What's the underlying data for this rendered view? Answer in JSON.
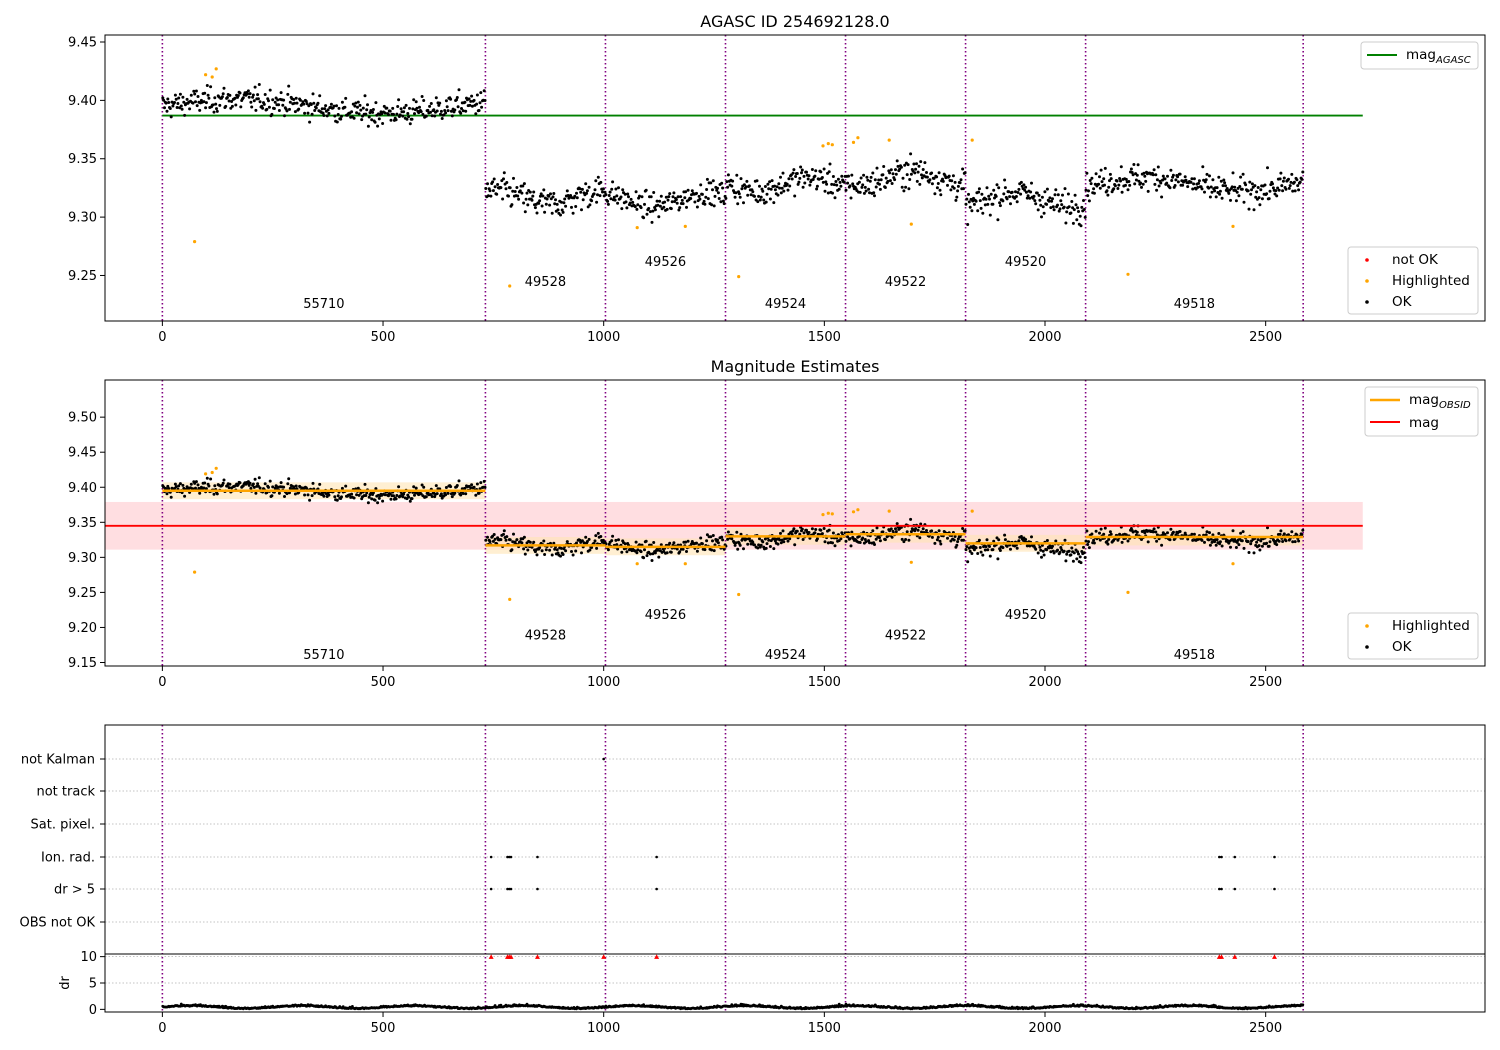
{
  "figure": {
    "background": "#ffffff",
    "xlim": [
      -130,
      2997
    ],
    "x_ticks": [
      0,
      500,
      1000,
      1500,
      2000,
      2500
    ]
  },
  "segments": {
    "boundaries": [
      0,
      732,
      1004,
      1276,
      1548,
      1820,
      2092,
      2585
    ],
    "obsids": [
      "55710",
      "49528",
      "49526",
      "49524",
      "49522",
      "49520",
      "49518"
    ],
    "top_label_y": [
      9.222,
      9.241,
      9.258,
      9.222,
      9.241,
      9.258,
      9.222
    ],
    "mid_label_y": [
      9.155,
      9.183,
      9.212,
      9.155,
      9.183,
      9.212,
      9.155
    ],
    "boundary_color": "#800080"
  },
  "colors": {
    "ok": "#000000",
    "highlighted": "#ffa500",
    "not_ok": "#ff0000",
    "mag_agasc": "#008000",
    "mag": "#ff0000",
    "mag_band": "#ffd6da",
    "mag_obsid": "#ffa500",
    "obsid_band": "#ffe5b4"
  },
  "chart_data": [
    {
      "type": "scatter",
      "title": "AGASC ID 254692128.0",
      "xlim": [
        -130,
        2997
      ],
      "ylim": [
        9.211,
        9.456
      ],
      "y_ticks": [
        9.25,
        9.3,
        9.35,
        9.4,
        9.45
      ],
      "mag_agasc": 9.387,
      "mag_agasc_x_range": [
        0,
        2720
      ],
      "segment_means": [
        9.395,
        9.317,
        9.315,
        9.328,
        9.333,
        9.315,
        9.328
      ],
      "segment_scatter": [
        0.009,
        0.011,
        0.009,
        0.01,
        0.011,
        0.011,
        0.01
      ],
      "highlighted_points": [
        {
          "x": 73,
          "y": 9.279
        },
        {
          "x": 98,
          "y": 9.422
        },
        {
          "x": 113,
          "y": 9.42
        },
        {
          "x": 122,
          "y": 9.427
        },
        {
          "x": 787,
          "y": 9.241
        },
        {
          "x": 1076,
          "y": 9.291
        },
        {
          "x": 1185,
          "y": 9.292
        },
        {
          "x": 1306,
          "y": 9.249
        },
        {
          "x": 1497,
          "y": 9.361
        },
        {
          "x": 1509,
          "y": 9.363
        },
        {
          "x": 1518,
          "y": 9.362
        },
        {
          "x": 1566,
          "y": 9.364
        },
        {
          "x": 1576,
          "y": 9.368
        },
        {
          "x": 1647,
          "y": 9.366
        },
        {
          "x": 1697,
          "y": 9.294
        },
        {
          "x": 1835,
          "y": 9.366
        },
        {
          "x": 2188,
          "y": 9.251
        },
        {
          "x": 2426,
          "y": 9.292
        }
      ],
      "legend_upper": [
        {
          "label": "mag",
          "sub": "AGASC"
        }
      ],
      "legend_lower": [
        {
          "label": "not OK",
          "marker": "dot"
        },
        {
          "label": "Highlighted",
          "marker": "dot"
        },
        {
          "label": "OK",
          "marker": "dot"
        }
      ]
    },
    {
      "type": "scatter",
      "title": "Magnitude Estimates",
      "xlim": [
        -130,
        2997
      ],
      "ylim": [
        9.145,
        9.553
      ],
      "y_ticks": [
        9.15,
        9.2,
        9.25,
        9.3,
        9.35,
        9.4,
        9.45,
        9.5
      ],
      "mag": 9.345,
      "mag_band": [
        9.311,
        9.379
      ],
      "mag_x_range": [
        -130,
        2720
      ],
      "mag_obsid": [
        9.395,
        9.317,
        9.315,
        9.33,
        9.333,
        9.32,
        9.329
      ],
      "highlighted_points": [
        {
          "x": 73,
          "y": 9.279
        },
        {
          "x": 98,
          "y": 9.419
        },
        {
          "x": 113,
          "y": 9.421
        },
        {
          "x": 122,
          "y": 9.427
        },
        {
          "x": 787,
          "y": 9.24
        },
        {
          "x": 1076,
          "y": 9.291
        },
        {
          "x": 1185,
          "y": 9.291
        },
        {
          "x": 1306,
          "y": 9.247
        },
        {
          "x": 1497,
          "y": 9.361
        },
        {
          "x": 1509,
          "y": 9.363
        },
        {
          "x": 1518,
          "y": 9.362
        },
        {
          "x": 1566,
          "y": 9.365
        },
        {
          "x": 1576,
          "y": 9.368
        },
        {
          "x": 1647,
          "y": 9.366
        },
        {
          "x": 1697,
          "y": 9.293
        },
        {
          "x": 1835,
          "y": 9.366
        },
        {
          "x": 2188,
          "y": 9.25
        },
        {
          "x": 2426,
          "y": 9.291
        }
      ],
      "legend_upper": [
        {
          "label": "mag",
          "sub": "OBSID"
        },
        {
          "label": "mag",
          "sub": ""
        }
      ],
      "legend_lower": [
        {
          "label": "Highlighted",
          "marker": "dot"
        },
        {
          "label": "OK",
          "marker": "dot"
        }
      ]
    },
    {
      "type": "scatter",
      "xlim": [
        -130,
        2997
      ],
      "flag_rows": [
        "not Kalman",
        "not track",
        "Sat. pixel.",
        "Ion. rad.",
        "dr > 5",
        "OBS not OK"
      ],
      "flag_points": {
        "not Kalman": [
          1000
        ],
        "not track": [],
        "Sat. pixel.": [],
        "Ion. rad.": [
          745,
          782,
          786,
          790,
          850,
          1120,
          2395,
          2400,
          2430,
          2520
        ],
        "dr > 5": [
          745,
          782,
          786,
          790,
          850,
          1120,
          2395,
          2400,
          2430,
          2520
        ],
        "OBS not OK": []
      },
      "dr_ylabel": "dr",
      "dr_ylim": [
        -0.5,
        10.5
      ],
      "dr_ticks": [
        0,
        5,
        10
      ],
      "dr_clipped_points": [
        {
          "x": 745,
          "y": 10
        },
        {
          "x": 782,
          "y": 10
        },
        {
          "x": 786,
          "y": 10
        },
        {
          "x": 790,
          "y": 10
        },
        {
          "x": 850,
          "y": 10
        },
        {
          "x": 1000,
          "y": 10
        },
        {
          "x": 1120,
          "y": 10
        },
        {
          "x": 2395,
          "y": 10
        },
        {
          "x": 2400,
          "y": 10
        },
        {
          "x": 2430,
          "y": 10
        },
        {
          "x": 2520,
          "y": 10
        }
      ]
    }
  ]
}
